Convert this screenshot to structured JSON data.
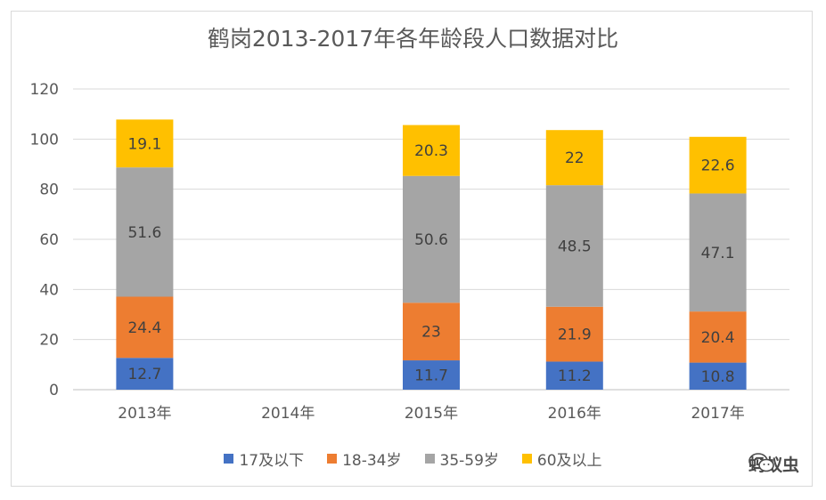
{
  "chart_data": {
    "type": "bar",
    "stacked": true,
    "title": "鹤岗2013-2017年各年龄段人口数据对比",
    "categories": [
      "2013年",
      "2014年",
      "2015年",
      "2016年",
      "2017年"
    ],
    "series": [
      {
        "name": "17及以下",
        "color": "#4472c4",
        "values": [
          12.7,
          null,
          11.7,
          11.2,
          10.8
        ]
      },
      {
        "name": "18-34岁",
        "color": "#ed7d31",
        "values": [
          24.4,
          null,
          23,
          21.9,
          20.4
        ]
      },
      {
        "name": "35-59岁",
        "color": "#a5a5a5",
        "values": [
          51.6,
          null,
          50.6,
          48.5,
          47.1
        ]
      },
      {
        "name": "60及以上",
        "color": "#ffc000",
        "values": [
          19.1,
          null,
          20.3,
          22,
          22.6
        ]
      }
    ],
    "ylim": [
      0,
      120
    ],
    "yticks": [
      0,
      20,
      40,
      60,
      80,
      100,
      120
    ],
    "grid": true,
    "legend": "bottom"
  },
  "watermark": {
    "text": "蚂蚁虫",
    "icon": "wechat-icon"
  }
}
